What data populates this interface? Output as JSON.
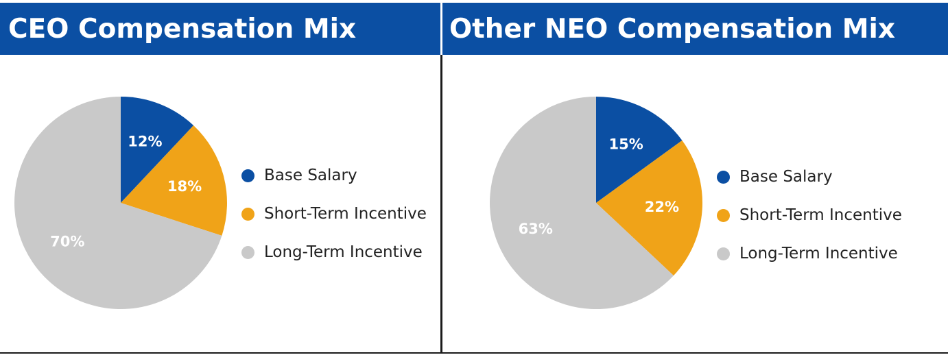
{
  "colors": {
    "header_bg": "#0b4fa3",
    "header_text": "#ffffff",
    "base_salary": "#0b4fa3",
    "short_term": "#f0a318",
    "long_term": "#c9c9c9"
  },
  "chart_data": [
    {
      "type": "pie",
      "title": "CEO Compensation Mix",
      "slices": [
        {
          "name": "Base Salary",
          "value": 12,
          "label": "12%",
          "color": "#0b4fa3"
        },
        {
          "name": "Short-Term Incentive",
          "value": 18,
          "label": "18%",
          "color": "#f0a318"
        },
        {
          "name": "Long-Term Incentive",
          "value": 70,
          "label": "70%",
          "color": "#c9c9c9"
        }
      ],
      "legend_position": "right"
    },
    {
      "type": "pie",
      "title": "Other NEO Compensation Mix",
      "slices": [
        {
          "name": "Base Salary",
          "value": 15,
          "label": "15%",
          "color": "#0b4fa3"
        },
        {
          "name": "Short-Term Incentive",
          "value": 22,
          "label": "22%",
          "color": "#f0a318"
        },
        {
          "name": "Long-Term Incentive",
          "value": 63,
          "label": "63%",
          "color": "#c9c9c9"
        }
      ],
      "legend_position": "right"
    }
  ]
}
